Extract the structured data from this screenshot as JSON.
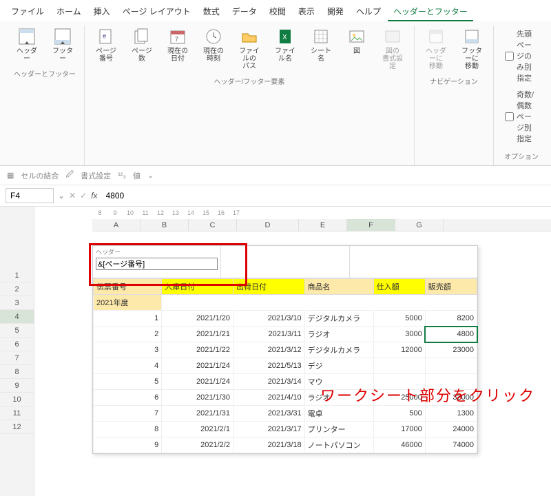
{
  "menu": {
    "items": [
      "ファイル",
      "ホーム",
      "挿入",
      "ページ レイアウト",
      "数式",
      "データ",
      "校閲",
      "表示",
      "開発",
      "ヘルプ",
      "ヘッダーとフッター"
    ],
    "active_index": 10,
    "active_color": "#107c41"
  },
  "ribbon": {
    "group_hf": {
      "name": "ヘッダーとフッター",
      "header_btn": "ヘッダー",
      "footer_btn": "フッター"
    },
    "group_elem": {
      "name": "ヘッダー/フッター要素",
      "buttons": {
        "page_no": "ページ\n番号",
        "page_count": "ページ数",
        "date": "現在の\n日付",
        "time": "現在の\n時刻",
        "path": "ファイルの\nパス",
        "filename": "ファイル名",
        "sheet": "シート名",
        "picture": "図",
        "picfmt": "図の\n書式設定"
      }
    },
    "group_nav": {
      "name": "ナビゲーション",
      "goto_header": "ヘッダーに\n移動",
      "goto_footer": "フッターに\n移動"
    },
    "group_opt": {
      "name": "オプション",
      "first_diff": "先頭ページのみ別指定",
      "odd_even": "奇数/偶数ページ別指定"
    }
  },
  "qat": {
    "merge": "セルの結合",
    "format": "書式設定",
    "value": "値"
  },
  "formula_bar": {
    "cell_ref": "F4",
    "value": "4800"
  },
  "ruler": [
    "8",
    "9",
    "10",
    "11",
    "12",
    "13",
    "14",
    "15",
    "16",
    "17"
  ],
  "columns": [
    "A",
    "B",
    "C",
    "D",
    "E",
    "F",
    "G"
  ],
  "selected_col_index": 5,
  "row_numbers": [
    1,
    2,
    3,
    4,
    5,
    6,
    7,
    8,
    9,
    10,
    11,
    12
  ],
  "selected_row_index": 3,
  "header_section": {
    "label": "ヘッダー",
    "field_value": "&[ページ番号]"
  },
  "table": {
    "headers": {
      "denpyo": "伝票番号",
      "nyuko": "入庫日付",
      "shukka": "出荷日付",
      "shohin": "商品名",
      "shiire": "仕入額",
      "hanbai": "販売額"
    },
    "yellow_cols": [
      "nyuko",
      "shukka",
      "shiire"
    ],
    "subheader": "2021年度",
    "highlight_bg": "#fde9a9",
    "yellow_bg": "#ffff00",
    "rows": [
      {
        "no": 1,
        "in": "2021/1/20",
        "out": "2021/3/10",
        "name": "デジタルカメラ",
        "buy": 5000,
        "sell": 8200
      },
      {
        "no": 2,
        "in": "2021/1/21",
        "out": "2021/3/11",
        "name": "ラジオ",
        "buy": 3000,
        "sell": 4800
      },
      {
        "no": 3,
        "in": "2021/1/22",
        "out": "2021/3/12",
        "name": "デジタルカメラ",
        "buy": 12000,
        "sell": 23000
      },
      {
        "no": 4,
        "in": "2021/1/24",
        "out": "2021/5/13",
        "name": "デジ",
        "buy": "",
        "sell": ""
      },
      {
        "no": 5,
        "in": "2021/1/24",
        "out": "2021/3/14",
        "name": "マウ",
        "buy": "",
        "sell": ""
      },
      {
        "no": 6,
        "in": "2021/1/30",
        "out": "2021/4/10",
        "name": "ラジオ",
        "buy": 25000,
        "sell": 32000
      },
      {
        "no": 7,
        "in": "2021/1/31",
        "out": "2021/3/31",
        "name": "電卓",
        "buy": 500,
        "sell": 1300
      },
      {
        "no": 8,
        "in": "2021/2/1",
        "out": "2021/3/17",
        "name": "プリンター",
        "buy": 17000,
        "sell": 24000
      },
      {
        "no": 9,
        "in": "2021/2/2",
        "out": "2021/3/18",
        "name": "ノートパソコン",
        "buy": 46000,
        "sell": 74000
      }
    ],
    "active_cell": {
      "row": 1,
      "col": "sell"
    }
  },
  "annotation": "ワークシート部分をクリック",
  "annotation_color": "#d00",
  "red_box_color": "#d00"
}
